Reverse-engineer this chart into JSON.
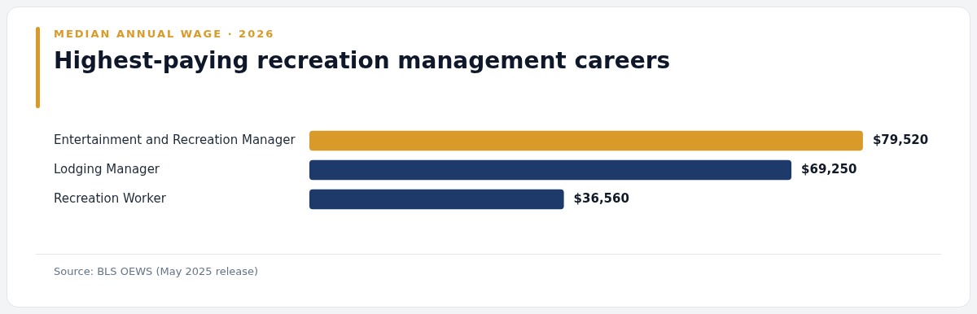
{
  "chart_data": {
    "type": "bar",
    "orientation": "horizontal",
    "subtitle": "MEDIAN ANNUAL WAGE · 2026",
    "title": "Highest-paying recreation management careers",
    "categories": [
      "Entertainment and Recreation Manager",
      "Lodging Manager",
      "Recreation Worker"
    ],
    "values": [
      79520,
      69250,
      36560
    ],
    "colors": [
      "#d99a29",
      "#1d3a6b",
      "#1d3a6b"
    ],
    "value_labels": [
      "$79,520",
      "$69,250",
      "$36,560"
    ],
    "annotations": [
      "Source: BLS OEWS (May 2025 release)"
    ]
  }
}
